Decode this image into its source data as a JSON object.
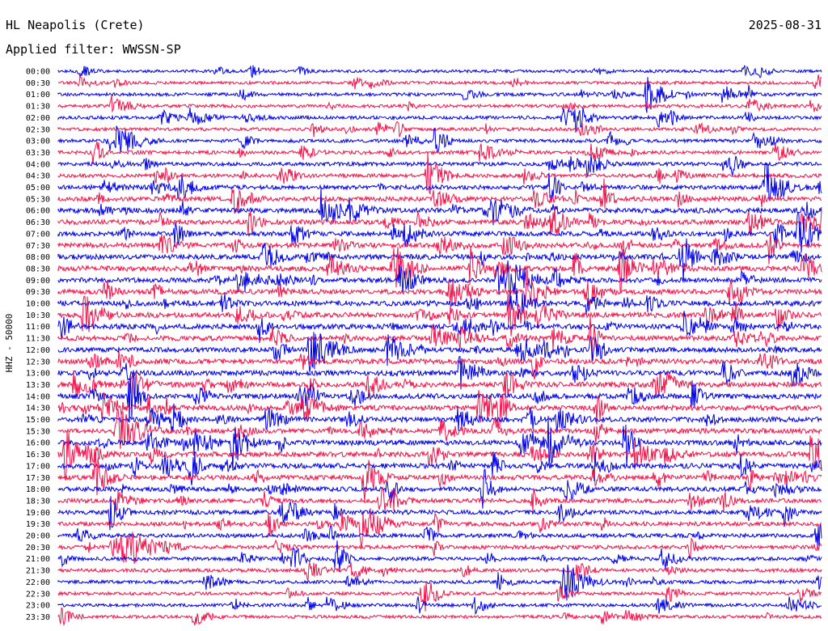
{
  "header": {
    "station": "HL Neapolis (Crete)",
    "filter": "Applied filter: WWSSN-SP",
    "date": "2025-08-31"
  },
  "axis": {
    "channel_label": "HHZ - 50000"
  },
  "colors": {
    "trace_a": "#0000e6",
    "trace_b": "#f0144a",
    "background": "#ffffff",
    "text": "#000000"
  },
  "chart_data": {
    "type": "line",
    "kind": "helicorder",
    "rows": [
      "00:00",
      "00:30",
      "01:00",
      "01:30",
      "02:00",
      "02:30",
      "03:00",
      "03:30",
      "04:00",
      "04:30",
      "05:00",
      "05:30",
      "06:00",
      "06:30",
      "07:00",
      "07:30",
      "08:00",
      "08:30",
      "09:00",
      "09:30",
      "10:00",
      "10:30",
      "11:00",
      "11:30",
      "12:00",
      "12:30",
      "13:00",
      "13:30",
      "14:00",
      "14:30",
      "15:00",
      "15:30",
      "16:00",
      "16:30",
      "17:00",
      "17:30",
      "18:00",
      "18:30",
      "19:00",
      "19:30",
      "20:00",
      "20:30",
      "21:00",
      "21:30",
      "22:00",
      "22:30",
      "23:00",
      "23:30"
    ],
    "row_activity": [
      0.35,
      0.4,
      0.45,
      0.45,
      0.5,
      0.5,
      0.5,
      0.55,
      0.6,
      0.6,
      0.75,
      0.8,
      0.95,
      0.9,
      0.85,
      0.9,
      0.95,
      1.0,
      0.9,
      0.95,
      1.0,
      1.0,
      0.95,
      0.9,
      0.9,
      0.95,
      0.95,
      1.0,
      1.0,
      0.95,
      0.95,
      0.95,
      1.0,
      0.95,
      0.95,
      0.85,
      0.8,
      0.75,
      0.75,
      0.7,
      0.65,
      0.6,
      0.55,
      0.55,
      0.5,
      0.45,
      0.45,
      0.45
    ]
  }
}
